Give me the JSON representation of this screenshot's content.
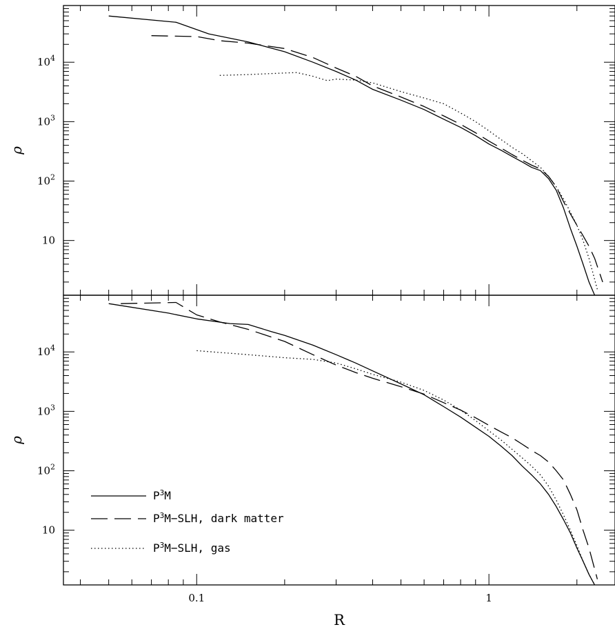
{
  "chart_data": [
    {
      "type": "line",
      "panel": "top",
      "title": "",
      "xlabel": "",
      "ylabel": "ρ",
      "xscale": "log",
      "yscale": "log",
      "xlim": [
        0.035,
        2.7
      ],
      "ylim": [
        1.2,
        90000
      ],
      "y_ticks": [
        {
          "value": 10000,
          "base": "10",
          "exp": "4"
        },
        {
          "value": 1000,
          "base": "10",
          "exp": "3"
        },
        {
          "value": 100,
          "base": "10",
          "exp": "2"
        },
        {
          "value": 10,
          "base": "10",
          "exp": ""
        }
      ],
      "grid": false,
      "legend": "none",
      "series": [
        {
          "name": "P³M",
          "dash": "solid",
          "x": [
            0.05,
            0.085,
            0.11,
            0.15,
            0.2,
            0.25,
            0.3,
            0.35,
            0.4,
            0.5,
            0.6,
            0.7,
            0.8,
            0.9,
            1.0,
            1.1,
            1.2,
            1.3,
            1.4,
            1.5,
            1.6,
            1.7,
            1.8,
            1.9,
            2.0,
            2.1,
            2.2,
            2.3
          ],
          "y": [
            60000,
            47000,
            30000,
            22000,
            15000,
            10000,
            7000,
            5000,
            3500,
            2300,
            1600,
            1100,
            800,
            580,
            420,
            330,
            260,
            210,
            170,
            150,
            110,
            70,
            35,
            16,
            8,
            4,
            2,
            1.2
          ]
        },
        {
          "name": "P³M-SLH, dark matter",
          "dash": "long-dash",
          "x": [
            0.07,
            0.1,
            0.12,
            0.15,
            0.2,
            0.25,
            0.3,
            0.35,
            0.4,
            0.5,
            0.6,
            0.7,
            0.8,
            0.9,
            1.0,
            1.1,
            1.2,
            1.3,
            1.4,
            1.5,
            1.6,
            1.7,
            1.8,
            1.9,
            2.0,
            2.1,
            2.2,
            2.3,
            2.45
          ],
          "y": [
            28000,
            27000,
            23000,
            21000,
            17000,
            12000,
            8000,
            5800,
            4000,
            2600,
            1800,
            1250,
            900,
            650,
            470,
            360,
            280,
            225,
            185,
            160,
            120,
            80,
            45,
            28,
            18,
            12,
            8,
            5,
            2
          ]
        },
        {
          "name": "P³M-SLH, gas",
          "dash": "dotted",
          "x": [
            0.12,
            0.15,
            0.2,
            0.22,
            0.25,
            0.28,
            0.3,
            0.35,
            0.4,
            0.5,
            0.6,
            0.7,
            0.8,
            0.9,
            1.0,
            1.1,
            1.2,
            1.3,
            1.4,
            1.5,
            1.6,
            1.7,
            1.8,
            1.9,
            2.0,
            2.1,
            2.2,
            2.35
          ],
          "y": [
            6000,
            6200,
            6600,
            6700,
            5800,
            4900,
            5200,
            5000,
            4500,
            3200,
            2500,
            2000,
            1400,
            1000,
            700,
            500,
            370,
            290,
            220,
            170,
            120,
            80,
            50,
            30,
            18,
            10,
            5,
            1.5
          ]
        }
      ]
    },
    {
      "type": "line",
      "panel": "bottom",
      "title": "",
      "xlabel": "R",
      "ylabel": "ρ",
      "xscale": "log",
      "yscale": "log",
      "xlim": [
        0.035,
        2.7
      ],
      "ylim": [
        1.2,
        90000
      ],
      "x_ticks": [
        {
          "value": 0.1,
          "label": "0.1"
        },
        {
          "value": 1,
          "label": "1"
        }
      ],
      "y_ticks": [
        {
          "value": 10000,
          "base": "10",
          "exp": "4"
        },
        {
          "value": 1000,
          "base": "10",
          "exp": "3"
        },
        {
          "value": 100,
          "base": "10",
          "exp": "2"
        },
        {
          "value": 10,
          "base": "10",
          "exp": ""
        }
      ],
      "grid": false,
      "legend": "bottom-left",
      "series": [
        {
          "name": "P³M",
          "dash": "solid",
          "x": [
            0.05,
            0.08,
            0.1,
            0.13,
            0.15,
            0.18,
            0.2,
            0.25,
            0.3,
            0.35,
            0.4,
            0.5,
            0.6,
            0.7,
            0.8,
            0.9,
            1.0,
            1.1,
            1.2,
            1.3,
            1.4,
            1.5,
            1.6,
            1.7,
            1.8,
            1.9,
            2.0,
            2.1,
            2.2,
            2.3
          ],
          "y": [
            65000,
            45000,
            36000,
            30000,
            29000,
            22000,
            19000,
            13000,
            9000,
            6500,
            4800,
            2900,
            1900,
            1200,
            800,
            540,
            380,
            260,
            180,
            120,
            85,
            60,
            40,
            25,
            15,
            9,
            5,
            3,
            1.8,
            1.2
          ]
        },
        {
          "name": "P³M-SLH, dark matter",
          "dash": "long-dash",
          "x": [
            0.055,
            0.085,
            0.1,
            0.12,
            0.15,
            0.2,
            0.25,
            0.3,
            0.35,
            0.4,
            0.5,
            0.6,
            0.7,
            0.8,
            0.9,
            1.0,
            1.1,
            1.2,
            1.3,
            1.4,
            1.5,
            1.6,
            1.7,
            1.8,
            1.9,
            2.0,
            2.1,
            2.2,
            2.35
          ],
          "y": [
            65000,
            68000,
            42000,
            32000,
            24000,
            15000,
            9000,
            6000,
            4500,
            3600,
            2600,
            1950,
            1400,
            1050,
            780,
            580,
            450,
            360,
            280,
            220,
            180,
            140,
            100,
            70,
            40,
            22,
            10,
            5,
            1.5
          ]
        },
        {
          "name": "P³M-SLH, gas",
          "dash": "dotted",
          "x": [
            0.1,
            0.15,
            0.2,
            0.25,
            0.3,
            0.35,
            0.4,
            0.5,
            0.6,
            0.7,
            0.8,
            0.9,
            1.0,
            1.1,
            1.2,
            1.3,
            1.4,
            1.5,
            1.6,
            1.7,
            1.8,
            1.9,
            2.0,
            2.1,
            2.2,
            2.3
          ],
          "y": [
            10500,
            9000,
            8000,
            7500,
            6500,
            5200,
            4200,
            3100,
            2250,
            1550,
            1050,
            700,
            470,
            330,
            230,
            165,
            120,
            85,
            55,
            32,
            18,
            10,
            5.5,
            3,
            1.8,
            1.2
          ]
        }
      ]
    }
  ],
  "legend": [
    {
      "base": "P",
      "sup": "3",
      "rest": "M",
      "dash": "solid"
    },
    {
      "base": "P",
      "sup": "3",
      "rest": "M−SLH, dark matter",
      "dash": "long-dash"
    },
    {
      "base": "P",
      "sup": "3",
      "rest": "M−SLH, gas",
      "dash": "dotted"
    }
  ]
}
